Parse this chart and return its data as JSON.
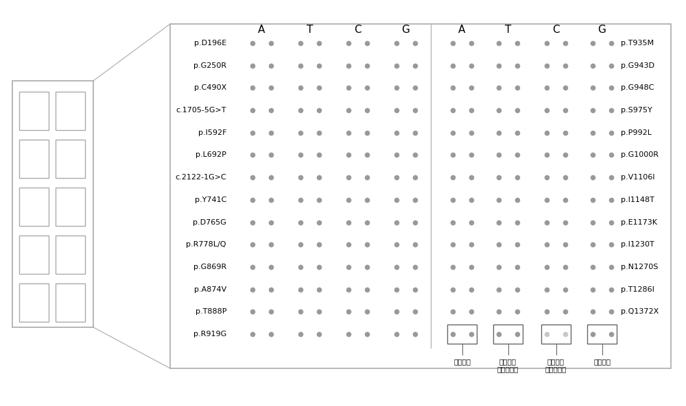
{
  "row_labels_left": [
    "p.D196E",
    "p.G250R",
    "p.C490X",
    "c.1705-5G>T",
    "p.I592F",
    "p.L692P",
    "c.2122-1G>C",
    "p.Y741C",
    "p.D765G",
    "p.R778L/Q",
    "p.G869R",
    "p.A874V",
    "p.T888P",
    "p.R919G"
  ],
  "row_labels_right": [
    "p.T935M",
    "p.G943D",
    "p.G948C",
    "p.S975Y",
    "p.P992L",
    "p.G1000R",
    "p.V1106I",
    "p.I1148T",
    "p.E1173K",
    "p.I1230T",
    "p.N1270S",
    "p.T1286I",
    "p.Q1372X",
    ""
  ],
  "col_headers": [
    "A",
    "T",
    "C",
    "G"
  ],
  "dot_color": "#999999",
  "dot_color_light": "#c8c8c8",
  "background_color": "#ffffff",
  "border_color": "#888888",
  "annotation_labels": [
    "阳性对照",
    "阴性对照\n（点样液）",
    "阴性对照\n（双蜤水）",
    "定位探针"
  ]
}
